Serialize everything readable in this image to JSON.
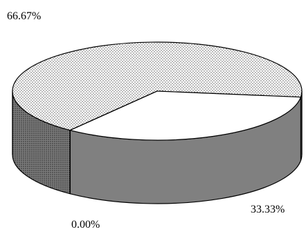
{
  "chart_data": {
    "type": "pie",
    "style": "3d",
    "legend": "none",
    "slices": [
      {
        "label": "66.67%",
        "value": 66.67,
        "fill": "dotted-light"
      },
      {
        "label": "33.33%",
        "value": 33.33,
        "fill": "white"
      },
      {
        "label": "0.00%",
        "value": 0.0,
        "fill": "dotted-dark"
      }
    ]
  },
  "colors": {
    "outline": "#000000",
    "white_slice": "#ffffff",
    "side_gray": "#808080",
    "dot_light_bg": "#ffffff",
    "dot_dark_bg": "#888888"
  }
}
